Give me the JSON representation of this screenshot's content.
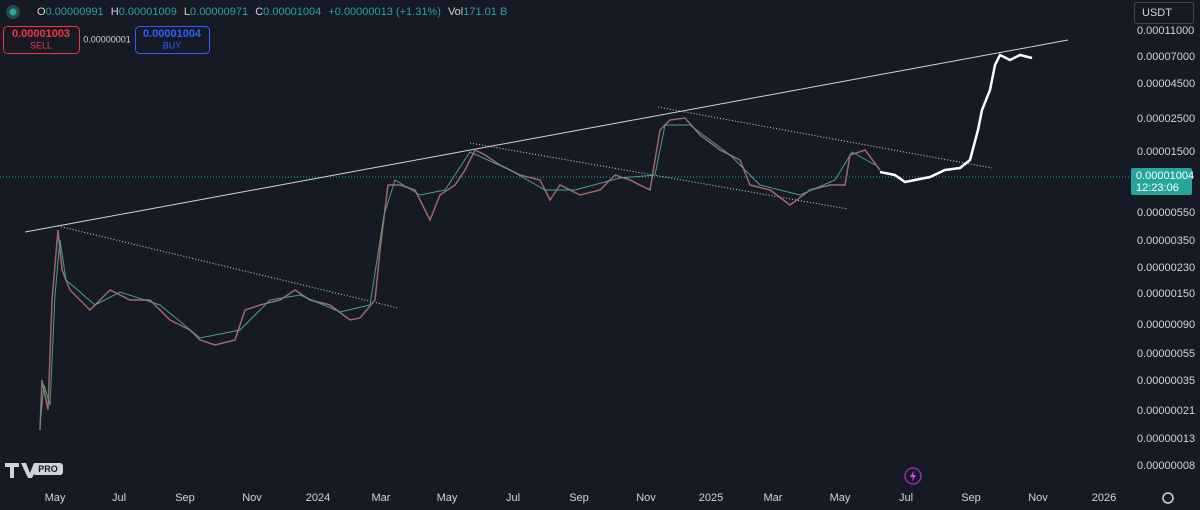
{
  "header": {
    "items": [
      {
        "label": "O",
        "value": "0.00000991"
      },
      {
        "label": "H",
        "value": "0.00001009"
      },
      {
        "label": "L",
        "value": "0.00000971"
      },
      {
        "label": "C",
        "value": "0.00001004"
      }
    ],
    "change": "+0.00000013 (+1.31%)",
    "volume_label": "Vol",
    "volume": "171.01 B",
    "currency": "USDT"
  },
  "order_panel": {
    "sell_price": "0.00001003",
    "sell": "SELL",
    "spread": "0.00000001",
    "buy_price": "0.00001004",
    "buy": "BUY"
  },
  "price_axis": {
    "labels": [
      "0.00011000",
      "0.00007000",
      "0.00004500",
      "0.00002500",
      "0.00001500",
      "0.00000550",
      "0.00000350",
      "0.00000230",
      "0.00000150",
      "0.00000090",
      "0.00000055",
      "0.00000035",
      "0.00000021",
      "0.00000013",
      "0.00000008"
    ],
    "last_price": "0.00001004",
    "countdown": "12:23:06"
  },
  "time_axis": {
    "labels": [
      "May",
      "Jul",
      "Sep",
      "Nov",
      "2024",
      "Mar",
      "May",
      "Jul",
      "Sep",
      "Nov",
      "2025",
      "Mar",
      "May",
      "Jul",
      "Sep",
      "Nov",
      "2026"
    ]
  },
  "logo": {
    "badge": "PRO"
  }
}
